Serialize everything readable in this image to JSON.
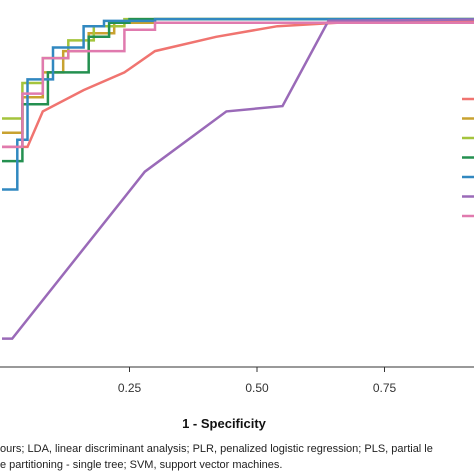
{
  "chart_data": {
    "type": "line",
    "title": "",
    "xlabel": "1 - Specificity",
    "ylabel": "",
    "xlim": [
      0,
      1
    ],
    "ylim": [
      0,
      1
    ],
    "x_ticks": [
      0.25,
      0.5,
      0.75
    ],
    "x_tick_labels": [
      "0.25",
      "0.50",
      "0.75"
    ],
    "grid": false,
    "legend_placement": "right",
    "series": [
      {
        "color": "#f07470",
        "points": [
          [
            0,
            0.62
          ],
          [
            0.05,
            0.62
          ],
          [
            0.08,
            0.72
          ],
          [
            0.16,
            0.78
          ],
          [
            0.24,
            0.83
          ],
          [
            0.3,
            0.89
          ],
          [
            0.42,
            0.93
          ],
          [
            0.54,
            0.96
          ],
          [
            0.72,
            0.975
          ],
          [
            1.0,
            0.975
          ]
        ]
      },
      {
        "color": "#c8a230",
        "points": [
          [
            0,
            0.66
          ],
          [
            0.04,
            0.66
          ],
          [
            0.04,
            0.76
          ],
          [
            0.08,
            0.76
          ],
          [
            0.08,
            0.83
          ],
          [
            0.12,
            0.83
          ],
          [
            0.12,
            0.89
          ],
          [
            0.17,
            0.89
          ],
          [
            0.17,
            0.94
          ],
          [
            0.22,
            0.94
          ],
          [
            0.22,
            0.97
          ],
          [
            0.3,
            0.97
          ],
          [
            0.3,
            0.98
          ],
          [
            1.0,
            0.98
          ]
        ]
      },
      {
        "color": "#a4c43c",
        "points": [
          [
            0,
            0.7
          ],
          [
            0.04,
            0.7
          ],
          [
            0.04,
            0.8
          ],
          [
            0.08,
            0.8
          ],
          [
            0.08,
            0.87
          ],
          [
            0.13,
            0.87
          ],
          [
            0.13,
            0.92
          ],
          [
            0.18,
            0.92
          ],
          [
            0.18,
            0.96
          ],
          [
            0.24,
            0.96
          ],
          [
            0.24,
            0.98
          ],
          [
            1.0,
            0.98
          ]
        ]
      },
      {
        "color": "#249050",
        "points": [
          [
            0,
            0.58
          ],
          [
            0.04,
            0.58
          ],
          [
            0.04,
            0.74
          ],
          [
            0.09,
            0.74
          ],
          [
            0.09,
            0.83
          ],
          [
            0.17,
            0.83
          ],
          [
            0.17,
            0.93
          ],
          [
            0.21,
            0.93
          ],
          [
            0.21,
            0.97
          ],
          [
            0.25,
            0.97
          ],
          [
            0.25,
            0.98
          ],
          [
            1.0,
            0.98
          ]
        ]
      },
      {
        "color": "#3188c0",
        "points": [
          [
            0,
            0.5
          ],
          [
            0.03,
            0.5
          ],
          [
            0.03,
            0.64
          ],
          [
            0.05,
            0.64
          ],
          [
            0.05,
            0.81
          ],
          [
            0.1,
            0.81
          ],
          [
            0.1,
            0.9
          ],
          [
            0.16,
            0.9
          ],
          [
            0.16,
            0.96
          ],
          [
            0.2,
            0.96
          ],
          [
            0.2,
            0.975
          ],
          [
            0.3,
            0.975
          ],
          [
            0.3,
            0.98
          ],
          [
            1.0,
            0.98
          ]
        ]
      },
      {
        "color": "#9a6ab8",
        "points": [
          [
            0,
            0.08
          ],
          [
            0.02,
            0.08
          ],
          [
            0.28,
            0.55
          ],
          [
            0.44,
            0.72
          ],
          [
            0.55,
            0.735
          ],
          [
            0.64,
            0.975
          ],
          [
            1.0,
            0.98
          ]
        ]
      },
      {
        "color": "#e07aae",
        "points": [
          [
            0,
            0.62
          ],
          [
            0.04,
            0.62
          ],
          [
            0.04,
            0.77
          ],
          [
            0.08,
            0.77
          ],
          [
            0.08,
            0.87
          ],
          [
            0.13,
            0.87
          ],
          [
            0.13,
            0.89
          ],
          [
            0.24,
            0.89
          ],
          [
            0.24,
            0.95
          ],
          [
            0.3,
            0.95
          ],
          [
            0.3,
            0.97
          ],
          [
            1.0,
            0.97
          ]
        ]
      }
    ]
  },
  "caption": {
    "line1": "ours; LDA, linear discriminant analysis; PLR, penalized logistic regression; PLS, partial le",
    "line2": "e partitioning - single tree; SVM, support vector machines."
  }
}
